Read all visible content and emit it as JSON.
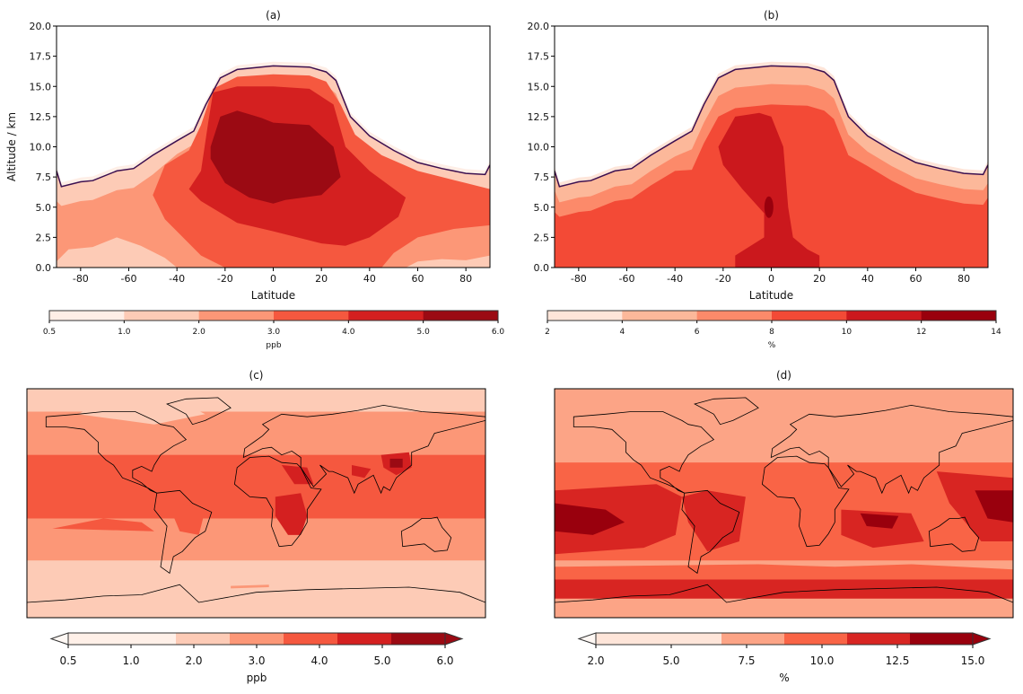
{
  "chart_data": [
    {
      "type": "contour",
      "title": "(a)",
      "xlabel": "Latitude",
      "ylabel": "Altitude / km",
      "xlim": [
        -90,
        90
      ],
      "ylim": [
        0,
        20
      ],
      "xticks": [
        "-80",
        "-60",
        "-40",
        "-20",
        "0",
        "20",
        "40",
        "60",
        "80"
      ],
      "yticks": [
        "0.0",
        "2.5",
        "5.0",
        "7.5",
        "10.0",
        "12.5",
        "15.0",
        "17.5",
        "20.0"
      ],
      "colorbar": {
        "label": "ppb",
        "ticks": [
          "0.5",
          "1.0",
          "2.0",
          "3.0",
          "4.0",
          "5.0",
          "6.0"
        ],
        "colors": [
          "#feeee6",
          "#fdcbb6",
          "#fc9777",
          "#f5583f",
          "#d42020",
          "#9b0a13"
        ]
      },
      "tropopause_color": "#3b0f4f"
    },
    {
      "type": "contour",
      "title": "(b)",
      "xlabel": "Latitude",
      "ylabel": "",
      "xlim": [
        -90,
        90
      ],
      "ylim": [
        0,
        20
      ],
      "xticks": [
        "-80",
        "-60",
        "-40",
        "-20",
        "0",
        "20",
        "40",
        "60",
        "80"
      ],
      "yticks": [
        "0.0",
        "2.5",
        "5.0",
        "7.5",
        "10.0",
        "12.5",
        "15.0",
        "17.5",
        "20.0"
      ],
      "colorbar": {
        "label": "%",
        "ticks": [
          "2",
          "4",
          "6",
          "8",
          "10",
          "12",
          "14"
        ],
        "colors": [
          "#fee5d9",
          "#fcb89a",
          "#fc8a6a",
          "#f34a36",
          "#cb181d",
          "#99000d"
        ]
      },
      "tropopause_color": "#3b0f4f"
    },
    {
      "type": "map-contour",
      "title": "(c)",
      "colorbar": {
        "label": "ppb",
        "ticks": [
          "0.5",
          "1.0",
          "2.0",
          "3.0",
          "4.0",
          "5.0",
          "6.0"
        ],
        "extend": "both",
        "colors": [
          "#fff0e8",
          "#fdcbb6",
          "#fc9777",
          "#f5583f",
          "#d42020",
          "#9b0a13"
        ]
      }
    },
    {
      "type": "map-contour",
      "title": "(d)",
      "colorbar": {
        "label": "%",
        "ticks": [
          "2.0",
          "5.0",
          "7.5",
          "10.0",
          "12.5",
          "15.0"
        ],
        "extend": "both",
        "colors": [
          "#fee5d9",
          "#fca486",
          "#f96446",
          "#d82522",
          "#99000d"
        ]
      }
    }
  ]
}
